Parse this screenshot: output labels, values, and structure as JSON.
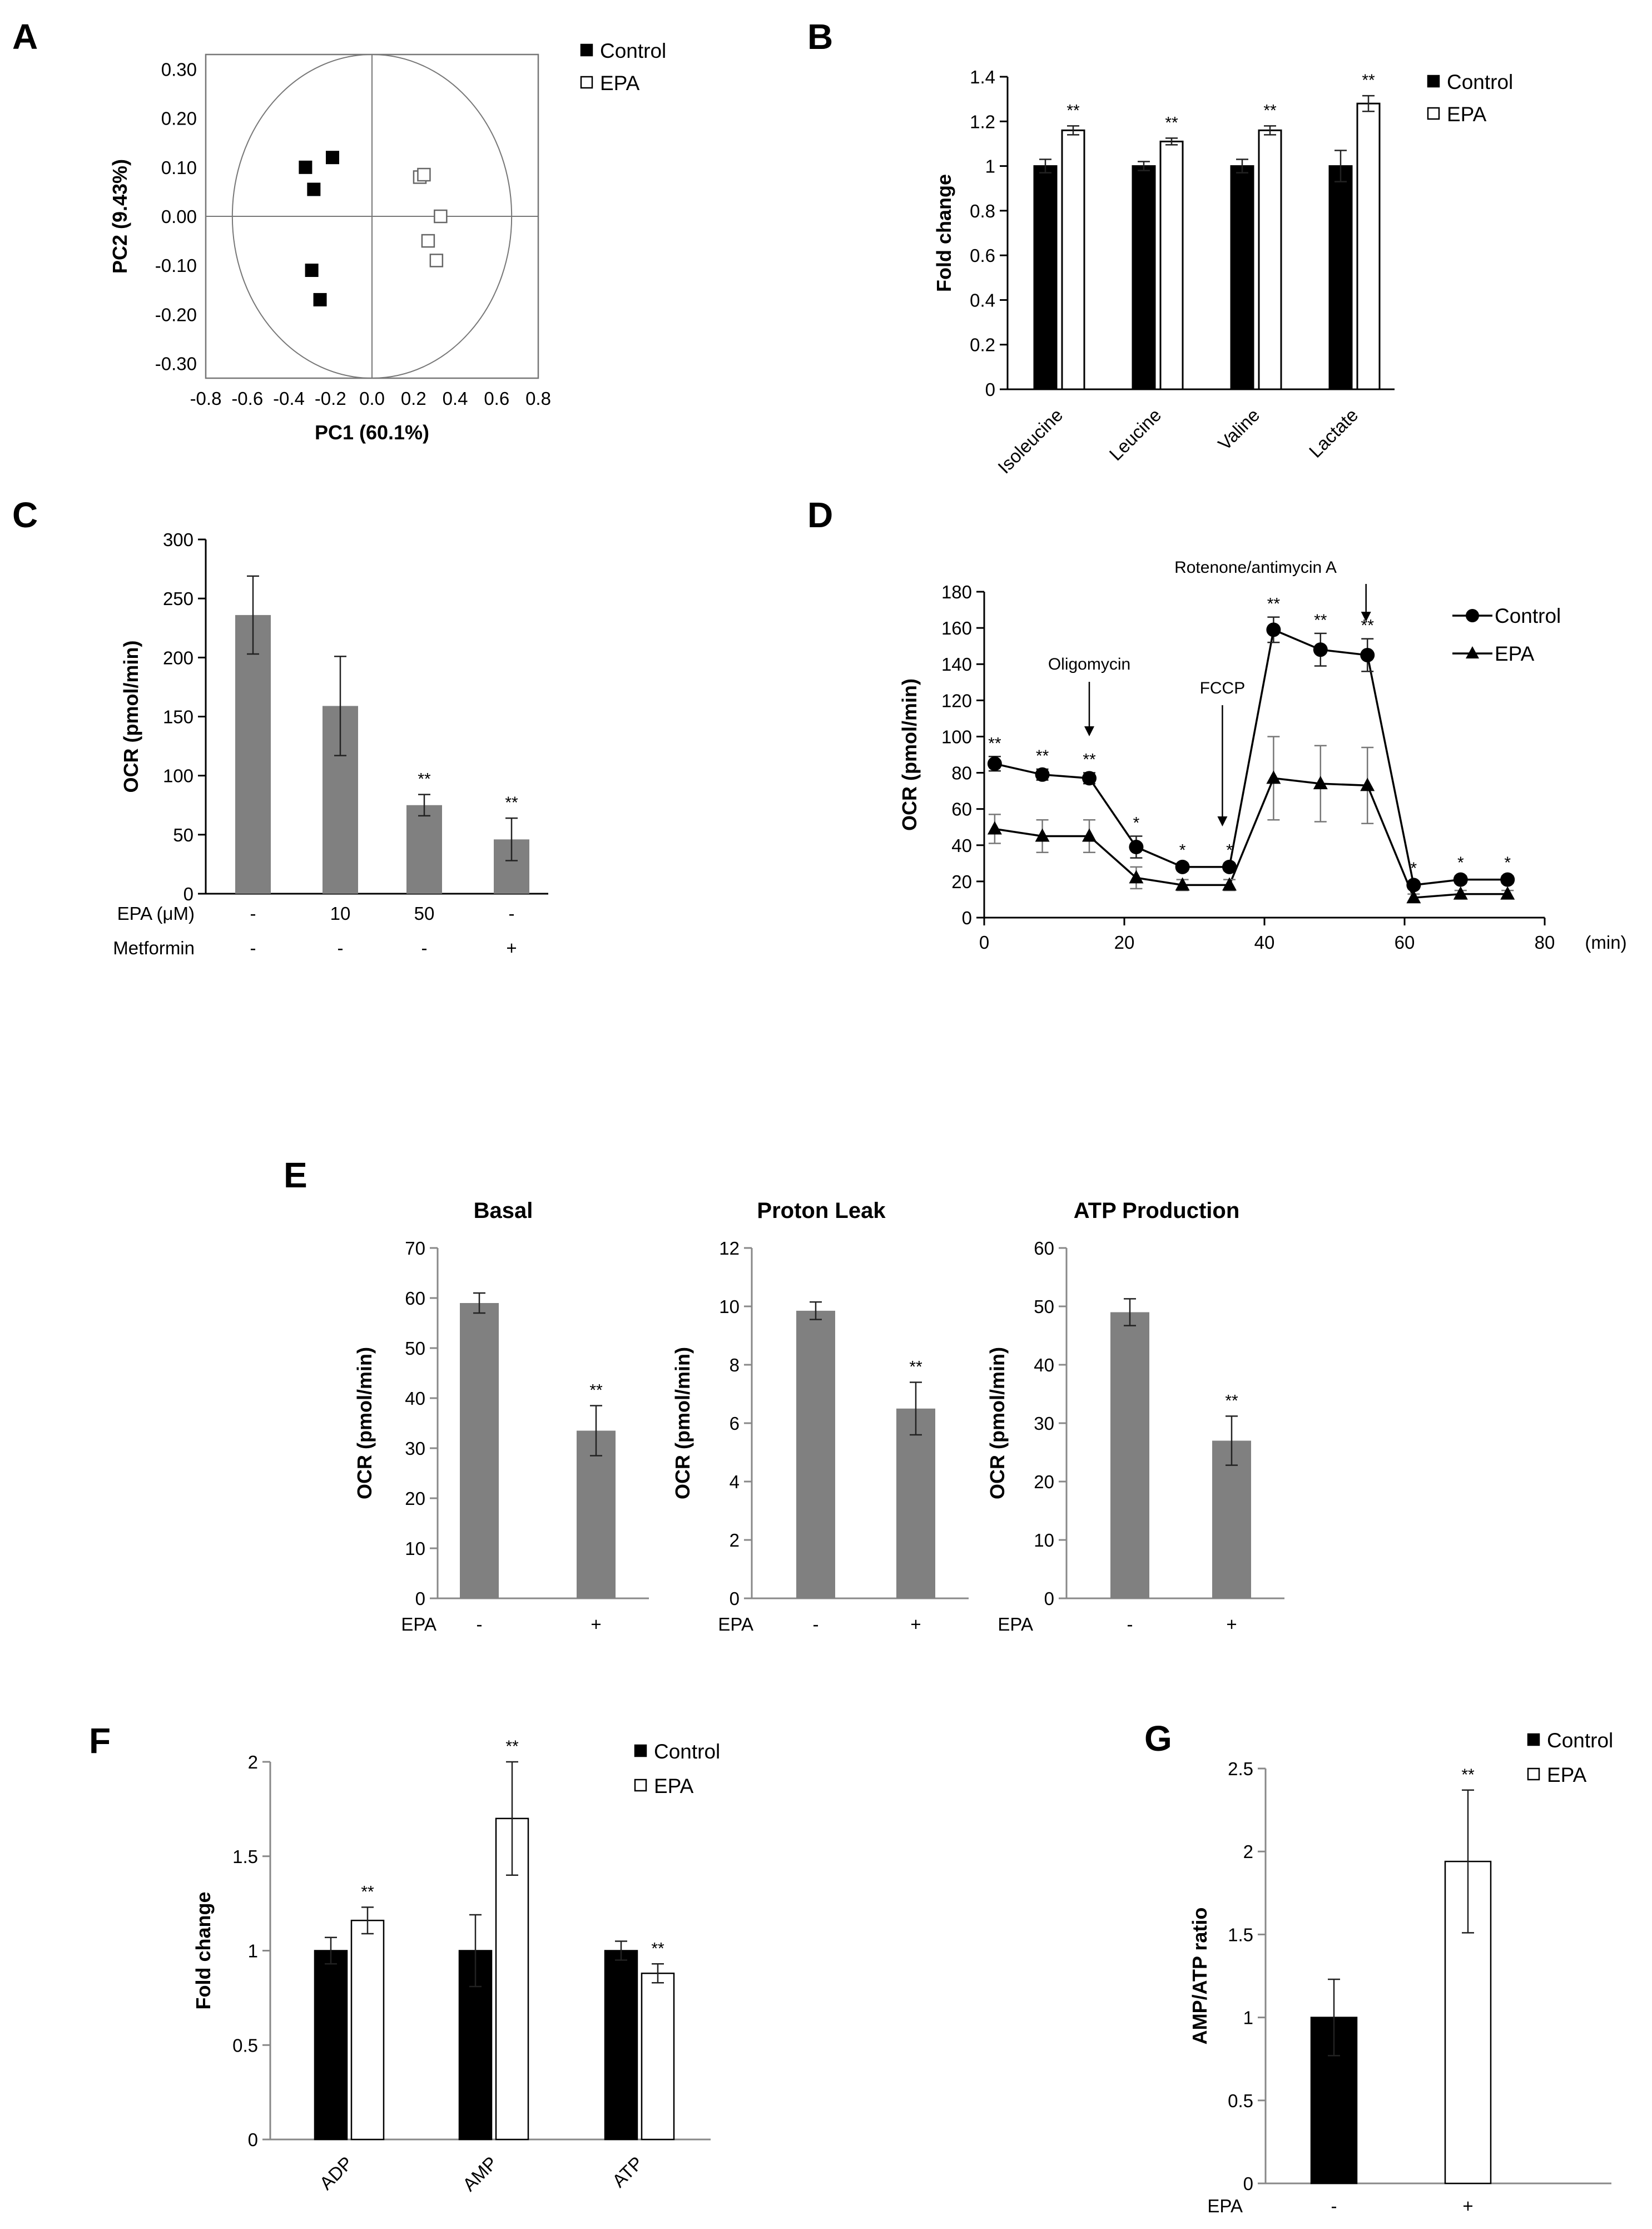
{
  "chart_data": [
    {
      "id": "A",
      "panel_label": "A",
      "type": "scatter",
      "xlabel": "PC1 (60.1%)",
      "ylabel": "PC2 (9.43%)",
      "xlim": [
        -0.8,
        0.8
      ],
      "ylim": [
        -0.33,
        0.33
      ],
      "xticks": [
        "-0.8",
        "-0.6",
        "-0.4",
        "-0.2",
        "0.0",
        "0.2",
        "0.4",
        "0.6",
        "0.8"
      ],
      "yticks": [
        "0.30",
        "0.20",
        "0.10",
        "0.00",
        "-0.10",
        "-0.20",
        "-0.30"
      ],
      "legend": [
        "Control",
        "EPA"
      ],
      "series": [
        {
          "name": "Control",
          "points": [
            [
              -0.32,
              0.1
            ],
            [
              -0.19,
              0.12
            ],
            [
              -0.28,
              0.055
            ],
            [
              -0.29,
              -0.11
            ],
            [
              -0.25,
              -0.17
            ]
          ]
        },
        {
          "name": "EPA",
          "points": [
            [
              0.23,
              0.08
            ],
            [
              0.25,
              0.085
            ],
            [
              0.33,
              0.0
            ],
            [
              0.27,
              -0.05
            ],
            [
              0.31,
              -0.09
            ]
          ]
        }
      ]
    },
    {
      "id": "B",
      "panel_label": "B",
      "type": "bar",
      "ylabel": "Fold change",
      "ylim": [
        0,
        1.4
      ],
      "yticks": [
        "0",
        "0.2",
        "0.4",
        "0.6",
        "0.8",
        "1",
        "1.2",
        "1.4"
      ],
      "categories": [
        "Isoleucine",
        "Leucine",
        "Valine",
        "Lactate"
      ],
      "legend": [
        "Control",
        "EPA"
      ],
      "series": [
        {
          "name": "Control",
          "values": [
            1.0,
            1.0,
            1.0,
            1.0
          ],
          "errors": [
            0.03,
            0.02,
            0.03,
            0.07
          ]
        },
        {
          "name": "EPA",
          "values": [
            1.16,
            1.11,
            1.16,
            1.28
          ],
          "errors": [
            0.02,
            0.015,
            0.02,
            0.035
          ]
        }
      ],
      "stars": [
        "**",
        "**",
        "**",
        "**"
      ]
    },
    {
      "id": "C",
      "panel_label": "C",
      "type": "bar",
      "ylabel": "OCR (pmol/min)",
      "ylim": [
        0,
        300
      ],
      "yticks": [
        "0",
        "50",
        "100",
        "150",
        "200",
        "250",
        "300"
      ],
      "values": [
        236,
        159,
        75,
        46
      ],
      "errors": [
        33,
        42,
        9,
        18
      ],
      "stars": [
        "",
        "",
        "**",
        "**"
      ],
      "row_labels": [
        "EPA (μM)",
        "Metformin"
      ],
      "rows": [
        [
          "-",
          "10",
          "50",
          "-"
        ],
        [
          "-",
          "-",
          "-",
          "+"
        ]
      ]
    },
    {
      "id": "D",
      "panel_label": "D",
      "type": "line",
      "ylabel": "OCR (pmol/min)",
      "xunit": "(min)",
      "xlim": [
        0,
        80
      ],
      "ylim": [
        0,
        180
      ],
      "xticks": [
        "0",
        "20",
        "40",
        "60",
        "80"
      ],
      "yticks": [
        "0",
        "20",
        "40",
        "60",
        "80",
        "100",
        "120",
        "140",
        "160",
        "180"
      ],
      "legend": [
        "Control",
        "EPA"
      ],
      "x": [
        1.5,
        8.3,
        15,
        21.7,
        28.3,
        35,
        41.3,
        48,
        54.7,
        61.3,
        68,
        74.7
      ],
      "series": [
        {
          "name": "Control",
          "values": [
            85,
            79,
            77,
            39,
            28,
            28,
            159,
            148,
            145,
            18,
            21,
            21
          ],
          "errors": [
            4,
            3,
            3,
            6,
            2,
            2,
            7,
            9,
            9,
            2,
            2,
            2
          ]
        },
        {
          "name": "EPA",
          "values": [
            49,
            45,
            45,
            22,
            18,
            18,
            77,
            74,
            73,
            11,
            13,
            13
          ],
          "errors": [
            8,
            9,
            9,
            6,
            3,
            3,
            23,
            21,
            21,
            2,
            2,
            2
          ]
        }
      ],
      "stars": [
        "**",
        "**",
        "**",
        "*",
        "*",
        "*",
        "**",
        "**",
        "**",
        "*",
        "*",
        "*"
      ],
      "annotations": [
        {
          "text": "Oligomycin",
          "x": 15
        },
        {
          "text": "FCCP",
          "x": 34
        },
        {
          "text": "Rotenone/antimycin A",
          "x": 54.5
        }
      ]
    },
    {
      "id": "E1",
      "panel_label": "E",
      "type": "bar",
      "title": "Basal",
      "ylabel": "OCR (pmol/min)",
      "ylim": [
        0,
        70
      ],
      "yticks": [
        "0",
        "10",
        "20",
        "30",
        "40",
        "50",
        "60",
        "70"
      ],
      "row_label": "EPA",
      "categories": [
        "-",
        "+"
      ],
      "values": [
        59,
        33.5
      ],
      "errors": [
        2,
        5
      ],
      "stars": [
        "",
        "**"
      ]
    },
    {
      "id": "E2",
      "type": "bar",
      "title": "Proton Leak",
      "ylabel": "OCR (pmol/min)",
      "ylim": [
        0,
        12
      ],
      "yticks": [
        "0",
        "2",
        "4",
        "6",
        "8",
        "10",
        "12"
      ],
      "row_label": "EPA",
      "categories": [
        "-",
        "+"
      ],
      "values": [
        9.85,
        6.5
      ],
      "errors": [
        0.3,
        0.9
      ],
      "stars": [
        "",
        "**"
      ]
    },
    {
      "id": "E3",
      "type": "bar",
      "title": "ATP Production",
      "ylabel": "OCR (pmol/min)",
      "ylim": [
        0,
        60
      ],
      "yticks": [
        "0",
        "10",
        "20",
        "30",
        "40",
        "50",
        "60"
      ],
      "row_label": "EPA",
      "categories": [
        "-",
        "+"
      ],
      "values": [
        49,
        27
      ],
      "errors": [
        2.3,
        4.2
      ],
      "stars": [
        "",
        "**"
      ]
    },
    {
      "id": "F",
      "panel_label": "F",
      "type": "bar",
      "ylabel": "Fold change",
      "ylim": [
        0,
        2
      ],
      "yticks": [
        "0",
        "0.5",
        "1",
        "1.5",
        "2"
      ],
      "categories": [
        "ADP",
        "AMP",
        "ATP"
      ],
      "legend": [
        "Control",
        "EPA"
      ],
      "series": [
        {
          "name": "Control",
          "values": [
            1.0,
            1.0,
            1.0
          ],
          "errors": [
            0.07,
            0.19,
            0.05
          ]
        },
        {
          "name": "EPA",
          "values": [
            1.16,
            1.7,
            0.88
          ],
          "errors": [
            0.07,
            0.3,
            0.05
          ]
        }
      ],
      "stars": [
        "**",
        "**",
        "**"
      ]
    },
    {
      "id": "G",
      "panel_label": "G",
      "type": "bar",
      "ylabel": "AMP/ATP ratio",
      "ylim": [
        0,
        2.5
      ],
      "yticks": [
        "0",
        "0.5",
        "1",
        "1.5",
        "2",
        "2.5"
      ],
      "row_label": "EPA",
      "categories": [
        "-",
        "+"
      ],
      "legend": [
        "Control",
        "EPA"
      ],
      "values": [
        1.0,
        1.94
      ],
      "errors": [
        0.23,
        0.43
      ],
      "stars": [
        "",
        "**"
      ]
    }
  ]
}
